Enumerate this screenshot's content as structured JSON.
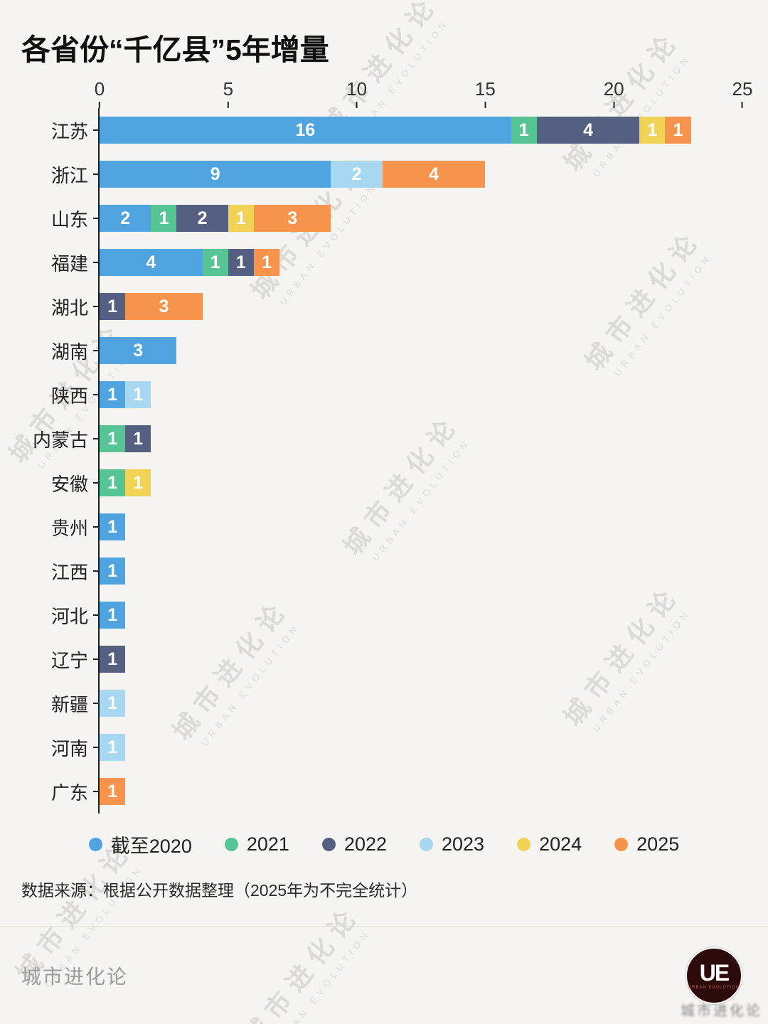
{
  "title": "各省份“千亿县”5年增量",
  "source": "数据来源：根据公开数据整理（2025年为不完全统计）",
  "watermark": {
    "line1": "城市进化论",
    "line2": "URBAN EVOLUTION"
  },
  "footer": {
    "brand": "城市进化论",
    "logo_text": "UE",
    "logo_sub": "URBAN EVOLUTION",
    "smudge": "城市进化论"
  },
  "chart_data": {
    "type": "bar",
    "orientation": "horizontal",
    "stacked": true,
    "title": "各省份“千亿县”5年增量",
    "xlabel": "",
    "ylabel": "",
    "xlim": [
      0,
      25
    ],
    "xticks": [
      0,
      5,
      10,
      15,
      20,
      25
    ],
    "grid": false,
    "legend_position": "bottom",
    "categories": [
      "江苏",
      "浙江",
      "山东",
      "福建",
      "湖北",
      "湖南",
      "陕西",
      "内蒙古",
      "安徽",
      "贵州",
      "江西",
      "河北",
      "辽宁",
      "新疆",
      "河南",
      "广东"
    ],
    "series": [
      {
        "name": "截至2020",
        "color": "#4fa3de",
        "values": [
          16,
          9,
          2,
          4,
          0,
          3,
          1,
          0,
          0,
          1,
          1,
          1,
          0,
          0,
          0,
          0
        ]
      },
      {
        "name": "2021",
        "color": "#57c496",
        "values": [
          1,
          0,
          1,
          1,
          0,
          0,
          0,
          1,
          1,
          0,
          0,
          0,
          0,
          0,
          0,
          0
        ]
      },
      {
        "name": "2022",
        "color": "#545f81",
        "values": [
          4,
          0,
          2,
          1,
          1,
          0,
          0,
          1,
          0,
          0,
          0,
          0,
          1,
          0,
          0,
          0
        ]
      },
      {
        "name": "2023",
        "color": "#a7d7f1",
        "values": [
          0,
          2,
          0,
          0,
          0,
          0,
          1,
          0,
          0,
          0,
          0,
          0,
          0,
          1,
          1,
          0
        ]
      },
      {
        "name": "2024",
        "color": "#f0d355",
        "values": [
          1,
          0,
          1,
          0,
          0,
          0,
          0,
          0,
          1,
          0,
          0,
          0,
          0,
          0,
          0,
          0
        ]
      },
      {
        "name": "2025",
        "color": "#f6934c",
        "values": [
          1,
          4,
          3,
          1,
          3,
          0,
          0,
          0,
          0,
          0,
          0,
          0,
          0,
          0,
          0,
          1
        ]
      }
    ],
    "totals": [
      23,
      15,
      9,
      7,
      4,
      3,
      2,
      2,
      2,
      1,
      1,
      1,
      1,
      1,
      1,
      1
    ]
  }
}
